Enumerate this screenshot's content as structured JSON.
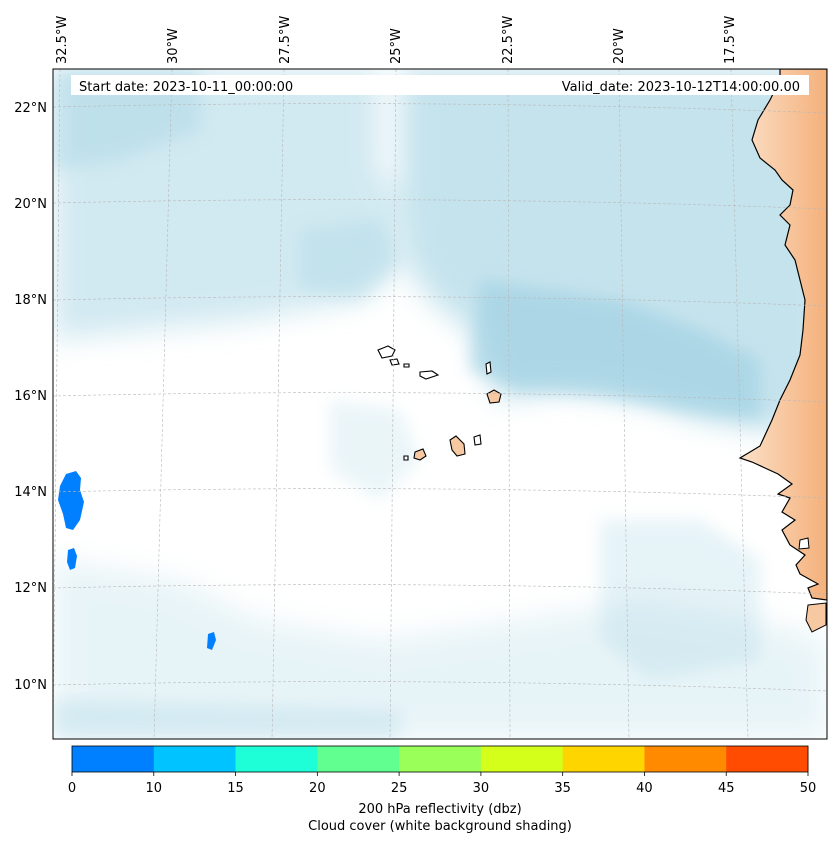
{
  "map": {
    "start_date": "Start date: 2023-10-11_00:00:00",
    "valid_date": "Valid_date: 2023-10-12T14:00:00.00",
    "lon_labels": [
      "32.5°W",
      "30°W",
      "27.5°W",
      "25°W",
      "22.5°W",
      "20°W",
      "17.5°W"
    ],
    "lat_labels": [
      "22°N",
      "20°N",
      "18°N",
      "16°N",
      "14°N",
      "12°N",
      "10°N"
    ]
  },
  "colorbar": {
    "ticks": [
      "0",
      "10",
      "15",
      "20",
      "25",
      "30",
      "35",
      "40",
      "45",
      "50"
    ],
    "colors": [
      "#0080ff",
      "#00c3ff",
      "#1effd7",
      "#60ff90",
      "#9bff5a",
      "#d4ff1a",
      "#ffd500",
      "#ff8a00",
      "#ff4c00"
    ],
    "label_line1": "200 hPa reflectivity (dbz)",
    "label_line2": "Cloud cover (white background shading)"
  },
  "colors": {
    "cloud": "#add8e6",
    "land_fill": "#f6c9a3",
    "reflectivity_low": "#0080ff"
  }
}
